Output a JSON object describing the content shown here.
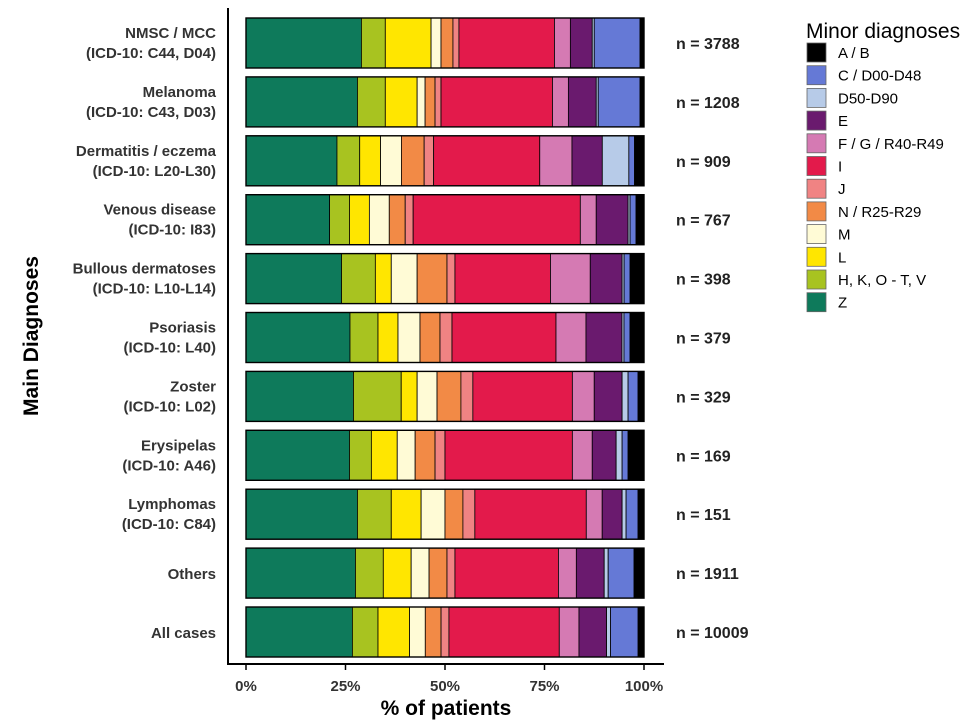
{
  "chart_data": {
    "type": "bar",
    "orientation": "horizontal",
    "stacked": true,
    "xlabel": "% of patients",
    "ylabel": "Main Diagnoses",
    "xlim": [
      0,
      100
    ],
    "x_ticks": [
      "0%",
      "25%",
      "50%",
      "75%",
      "100%"
    ],
    "x_tick_values": [
      0,
      25,
      50,
      75,
      100
    ],
    "grid": false,
    "legend": {
      "title": "Minor diagnoses",
      "position": "right"
    },
    "categories": [
      {
        "name": "NMSC / MCC",
        "sub": "(ICD-10: C44, D04)",
        "n": "n = 3788"
      },
      {
        "name": "Melanoma",
        "sub": "(ICD-10: C43, D03)",
        "n": "n = 1208"
      },
      {
        "name": "Dermatitis / eczema",
        "sub": "(ICD-10: L20-L30)",
        "n": "n = 909"
      },
      {
        "name": "Venous disease",
        "sub": "(ICD-10: I83)",
        "n": "n = 767"
      },
      {
        "name": "Bullous dermatoses",
        "sub": "(ICD-10: L10-L14)",
        "n": "n = 398"
      },
      {
        "name": "Psoriasis",
        "sub": "(ICD-10: L40)",
        "n": "n = 379"
      },
      {
        "name": "Zoster",
        "sub": "(ICD-10: L02)",
        "n": "n = 329"
      },
      {
        "name": "Erysipelas",
        "sub": "(ICD-10: A46)",
        "n": "n = 169"
      },
      {
        "name": "Lymphomas",
        "sub": "(ICD-10: C84)",
        "n": "n = 151"
      },
      {
        "name": "Others",
        "sub": "",
        "n": "n = 1911"
      },
      {
        "name": "All cases",
        "sub": "",
        "n": "n = 10009"
      }
    ],
    "series": [
      {
        "name": "Z",
        "color": "#0e7a5b",
        "values": [
          29,
          28,
          24,
          21,
          24,
          26,
          27,
          26,
          28,
          27.5,
          27
        ]
      },
      {
        "name": "H, K, O - T, V",
        "color": "#a8c320",
        "values": [
          6,
          7,
          6,
          5,
          8.5,
          7,
          12,
          5.5,
          8.5,
          7,
          6.5
        ]
      },
      {
        "name": "L",
        "color": "#ffe600",
        "values": [
          11.5,
          8,
          5.5,
          5,
          4,
          5,
          4,
          6.5,
          7.5,
          7,
          8
        ]
      },
      {
        "name": "M",
        "color": "#fffbd6",
        "values": [
          2.5,
          2,
          5.5,
          5,
          6.5,
          5.5,
          5,
          4.5,
          6,
          4.5,
          4
        ]
      },
      {
        "name": "N / R25-R29",
        "color": "#f28a46",
        "values": [
          3,
          2.5,
          6,
          4,
          7.5,
          5,
          6,
          5,
          4.5,
          4.5,
          4
        ]
      },
      {
        "name": "J",
        "color": "#f08383",
        "values": [
          1.5,
          1.5,
          2.5,
          2,
          2,
          3,
          3,
          2.5,
          3,
          2,
          2
        ]
      },
      {
        "name": "I",
        "color": "#e31a4b",
        "values": [
          24,
          28,
          28,
          42,
          24,
          26,
          25,
          32,
          28,
          26,
          28
        ]
      },
      {
        "name": "F / G / R40-R49",
        "color": "#d57ab3",
        "values": [
          4,
          4,
          8.5,
          4,
          10,
          7.5,
          5.5,
          5,
          4,
          4.5,
          5
        ]
      },
      {
        "name": "E",
        "color": "#6a1a6e",
        "values": [
          5.5,
          7,
          8,
          8,
          8,
          9,
          7,
          6,
          5,
          7,
          7
        ]
      },
      {
        "name": "D50-D90",
        "color": "#b7cbe8",
        "values": [
          0.5,
          0.5,
          7,
          0.5,
          0.5,
          0.5,
          1.5,
          1.5,
          1,
          1,
          1
        ]
      },
      {
        "name": "C / D00-D48",
        "color": "#6579d6",
        "values": [
          11.5,
          10.5,
          1.5,
          1.5,
          1.5,
          1.5,
          2.5,
          1.5,
          3,
          6.5,
          7
        ]
      },
      {
        "name": "A / B",
        "color": "#000000",
        "values": [
          1,
          1,
          2.5,
          2,
          3.5,
          3.5,
          1.5,
          4,
          1.5,
          2.5,
          1.5
        ]
      }
    ],
    "legend_order": [
      "A / B",
      "C / D00-D48",
      "D50-D90",
      "E",
      "F / G / R40-R49",
      "I",
      "J",
      "N / R25-R29",
      "M",
      "L",
      "H, K, O - T, V",
      "Z"
    ]
  }
}
